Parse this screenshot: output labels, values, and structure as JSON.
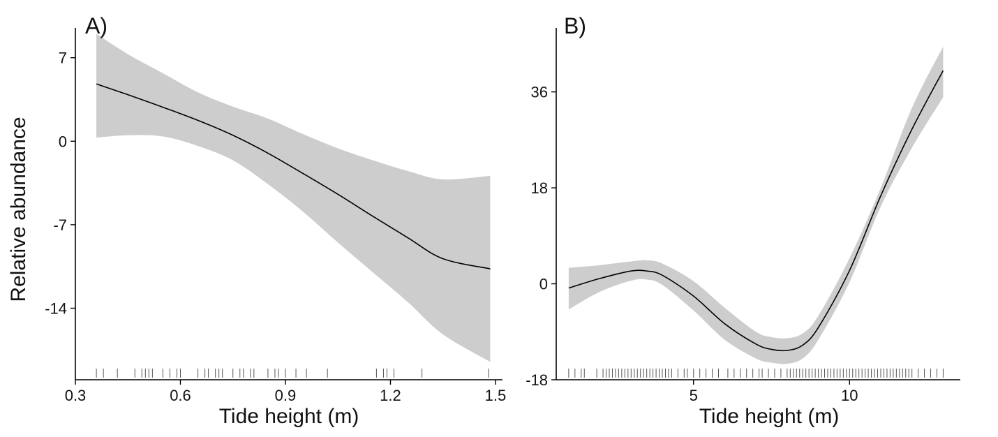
{
  "ylabel": "Relative abundance",
  "chart_data": [
    {
      "type": "line",
      "panel_label": "A)",
      "xlabel": "Tide height (m)",
      "ylabel": "Relative abundance",
      "xlim": [
        0.3,
        1.52
      ],
      "ylim": [
        -20,
        9.5
      ],
      "xticks": [
        0.3,
        0.6,
        0.9,
        1.2,
        1.5
      ],
      "xtick_labels": [
        "0.3",
        "0.6",
        "0.9",
        "1.2",
        "1.5"
      ],
      "yticks": [
        7,
        0,
        -7,
        -14
      ],
      "ytick_labels": [
        "7",
        "0",
        "-7",
        "-14"
      ],
      "x": [
        0.36,
        0.45,
        0.55,
        0.65,
        0.75,
        0.85,
        0.95,
        1.05,
        1.15,
        1.25,
        1.35,
        1.485
      ],
      "y": [
        4.8,
        3.9,
        2.85,
        1.75,
        0.5,
        -1.0,
        -2.7,
        -4.45,
        -6.3,
        -8.1,
        -9.85,
        -10.7
      ],
      "upper": [
        9.0,
        7.3,
        5.7,
        4.1,
        2.9,
        1.9,
        0.6,
        -0.6,
        -1.6,
        -2.5,
        -3.2,
        -2.9
      ],
      "lower": [
        0.3,
        0.5,
        0.4,
        -0.4,
        -1.6,
        -3.6,
        -5.9,
        -8.5,
        -11.0,
        -13.5,
        -16.2,
        -18.5
      ],
      "rug": [
        0.36,
        0.38,
        0.42,
        0.47,
        0.49,
        0.5,
        0.51,
        0.52,
        0.55,
        0.57,
        0.59,
        0.6,
        0.65,
        0.67,
        0.68,
        0.7,
        0.71,
        0.72,
        0.75,
        0.77,
        0.78,
        0.8,
        0.81,
        0.85,
        0.87,
        0.88,
        0.9,
        0.93,
        0.96,
        1.02,
        1.16,
        1.18,
        1.19,
        1.21,
        1.29,
        1.48
      ],
      "band_color": "#cdcdcd",
      "line_color": "#000000"
    },
    {
      "type": "line",
      "panel_label": "B)",
      "xlabel": "Tide height (m)",
      "ylabel": "",
      "xlim": [
        0.6,
        13.55
      ],
      "ylim": [
        -18,
        48
      ],
      "xticks": [
        5,
        10
      ],
      "xtick_labels": [
        "5",
        "10"
      ],
      "yticks": [
        36,
        18,
        0,
        -18
      ],
      "ytick_labels": [
        "36",
        "18",
        "0",
        "-18"
      ],
      "x": [
        1.0,
        2.0,
        3.0,
        3.5,
        4.0,
        5.0,
        6.0,
        7.0,
        7.5,
        8.0,
        8.5,
        9.0,
        10.0,
        11.0,
        12.0,
        13.0
      ],
      "y": [
        -0.8,
        1.0,
        2.4,
        2.4,
        1.6,
        -2.3,
        -7.5,
        -11.3,
        -12.3,
        -12.5,
        -11.5,
        -8.2,
        2.5,
        16.5,
        29.0,
        40.0
      ],
      "upper": [
        3.0,
        3.5,
        4.2,
        4.4,
        3.8,
        0.5,
        -4.5,
        -9.0,
        -10.0,
        -10.2,
        -9.3,
        -6.0,
        4.8,
        18.0,
        33.0,
        44.5
      ],
      "lower": [
        -4.8,
        -1.5,
        0.6,
        0.8,
        -0.2,
        -5.0,
        -10.5,
        -14.0,
        -14.8,
        -15.0,
        -14.0,
        -10.5,
        0.3,
        14.5,
        25.5,
        35.0
      ],
      "rug": [
        1.0,
        1.2,
        1.4,
        1.5,
        1.9,
        2.1,
        2.2,
        2.3,
        2.4,
        2.5,
        2.6,
        2.7,
        2.8,
        2.9,
        3.0,
        3.1,
        3.2,
        3.3,
        3.4,
        3.5,
        3.6,
        3.7,
        3.8,
        3.9,
        4.0,
        4.1,
        4.2,
        4.3,
        4.5,
        4.7,
        4.8,
        5.0,
        5.2,
        5.4,
        5.6,
        5.8,
        6.1,
        6.3,
        6.5,
        6.7,
        6.9,
        7.1,
        7.2,
        7.4,
        7.6,
        7.8,
        8.0,
        8.1,
        8.2,
        8.3,
        8.4,
        8.5,
        8.6,
        8.7,
        8.8,
        8.9,
        9.0,
        9.1,
        9.2,
        9.3,
        9.4,
        9.5,
        9.6,
        9.7,
        9.8,
        9.9,
        10.0,
        10.1,
        10.2,
        10.3,
        10.4,
        10.5,
        10.6,
        10.7,
        10.8,
        10.9,
        11.0,
        11.1,
        11.2,
        11.3,
        11.4,
        11.5,
        11.6,
        11.7,
        11.8,
        11.9,
        12.0,
        12.2,
        12.4,
        12.6,
        12.8,
        13.0
      ],
      "band_color": "#cdcdcd",
      "line_color": "#000000"
    }
  ]
}
